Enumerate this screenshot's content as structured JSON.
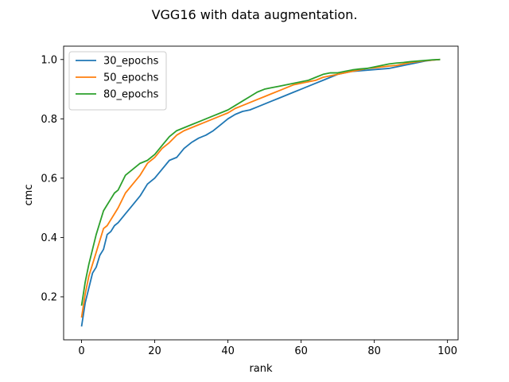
{
  "chart_data": {
    "type": "line",
    "title": "VGG16 with data augmentation.",
    "xlabel": "rank",
    "ylabel": "cmc",
    "xlim": [
      -4.9,
      102.9
    ],
    "ylim": [
      0.055,
      1.045
    ],
    "xticks": [
      0,
      20,
      40,
      60,
      80,
      100
    ],
    "yticks": [
      0.2,
      0.4,
      0.6,
      0.8,
      1.0
    ],
    "xtick_labels": [
      "0",
      "20",
      "40",
      "60",
      "80",
      "100"
    ],
    "ytick_labels": [
      "0.2",
      "0.4",
      "0.6",
      "0.8",
      "1.0"
    ],
    "grid": false,
    "legend_position": "upper-left",
    "series": [
      {
        "name": "30_epochs",
        "color": "#1f77b4",
        "x": [
          0,
          1,
          2,
          3,
          4,
          5,
          6,
          7,
          8,
          9,
          10,
          12,
          14,
          16,
          18,
          20,
          22,
          24,
          26,
          28,
          30,
          32,
          34,
          36,
          38,
          40,
          42,
          44,
          46,
          48,
          50,
          52,
          54,
          56,
          58,
          60,
          62,
          64,
          66,
          68,
          70,
          72,
          74,
          76,
          78,
          80,
          82,
          84,
          86,
          88,
          90,
          92,
          94,
          96,
          98
        ],
        "y": [
          0.1,
          0.18,
          0.23,
          0.28,
          0.3,
          0.34,
          0.36,
          0.41,
          0.42,
          0.44,
          0.45,
          0.48,
          0.51,
          0.54,
          0.58,
          0.6,
          0.63,
          0.66,
          0.67,
          0.7,
          0.72,
          0.735,
          0.745,
          0.76,
          0.78,
          0.8,
          0.815,
          0.825,
          0.83,
          0.84,
          0.85,
          0.86,
          0.87,
          0.88,
          0.89,
          0.9,
          0.91,
          0.92,
          0.93,
          0.94,
          0.95,
          0.955,
          0.96,
          0.962,
          0.964,
          0.966,
          0.968,
          0.97,
          0.975,
          0.98,
          0.985,
          0.99,
          0.995,
          0.998,
          1.0
        ]
      },
      {
        "name": "50_epochs",
        "color": "#ff7f0e",
        "x": [
          0,
          1,
          2,
          3,
          4,
          5,
          6,
          7,
          8,
          9,
          10,
          12,
          14,
          16,
          18,
          20,
          22,
          24,
          26,
          28,
          30,
          32,
          34,
          36,
          38,
          40,
          42,
          44,
          46,
          48,
          50,
          52,
          54,
          56,
          58,
          60,
          62,
          64,
          66,
          68,
          70,
          72,
          74,
          76,
          78,
          80,
          82,
          84,
          86,
          88,
          90,
          92,
          94,
          96,
          98
        ],
        "y": [
          0.13,
          0.21,
          0.27,
          0.31,
          0.35,
          0.39,
          0.43,
          0.44,
          0.46,
          0.48,
          0.5,
          0.55,
          0.58,
          0.61,
          0.65,
          0.67,
          0.7,
          0.72,
          0.745,
          0.76,
          0.77,
          0.78,
          0.79,
          0.8,
          0.81,
          0.82,
          0.835,
          0.845,
          0.855,
          0.865,
          0.875,
          0.885,
          0.895,
          0.905,
          0.915,
          0.92,
          0.925,
          0.93,
          0.94,
          0.945,
          0.95,
          0.955,
          0.96,
          0.965,
          0.97,
          0.972,
          0.975,
          0.978,
          0.98,
          0.985,
          0.99,
          0.993,
          0.996,
          0.998,
          1.0
        ]
      },
      {
        "name": "80_epochs",
        "color": "#2ca02c",
        "x": [
          0,
          1,
          2,
          3,
          4,
          5,
          6,
          7,
          8,
          9,
          10,
          12,
          14,
          16,
          18,
          20,
          22,
          24,
          26,
          28,
          30,
          32,
          34,
          36,
          38,
          40,
          42,
          44,
          46,
          48,
          50,
          52,
          54,
          56,
          58,
          60,
          62,
          64,
          66,
          68,
          70,
          72,
          74,
          76,
          78,
          80,
          82,
          84,
          86,
          88,
          90,
          92,
          94,
          96,
          98
        ],
        "y": [
          0.17,
          0.25,
          0.31,
          0.36,
          0.41,
          0.45,
          0.49,
          0.51,
          0.53,
          0.55,
          0.56,
          0.61,
          0.63,
          0.65,
          0.66,
          0.68,
          0.71,
          0.74,
          0.76,
          0.77,
          0.78,
          0.79,
          0.8,
          0.81,
          0.82,
          0.83,
          0.845,
          0.86,
          0.875,
          0.89,
          0.9,
          0.905,
          0.91,
          0.915,
          0.92,
          0.925,
          0.93,
          0.94,
          0.95,
          0.955,
          0.955,
          0.96,
          0.965,
          0.968,
          0.97,
          0.975,
          0.98,
          0.985,
          0.988,
          0.99,
          0.993,
          0.995,
          0.997,
          0.999,
          1.0
        ]
      }
    ]
  }
}
